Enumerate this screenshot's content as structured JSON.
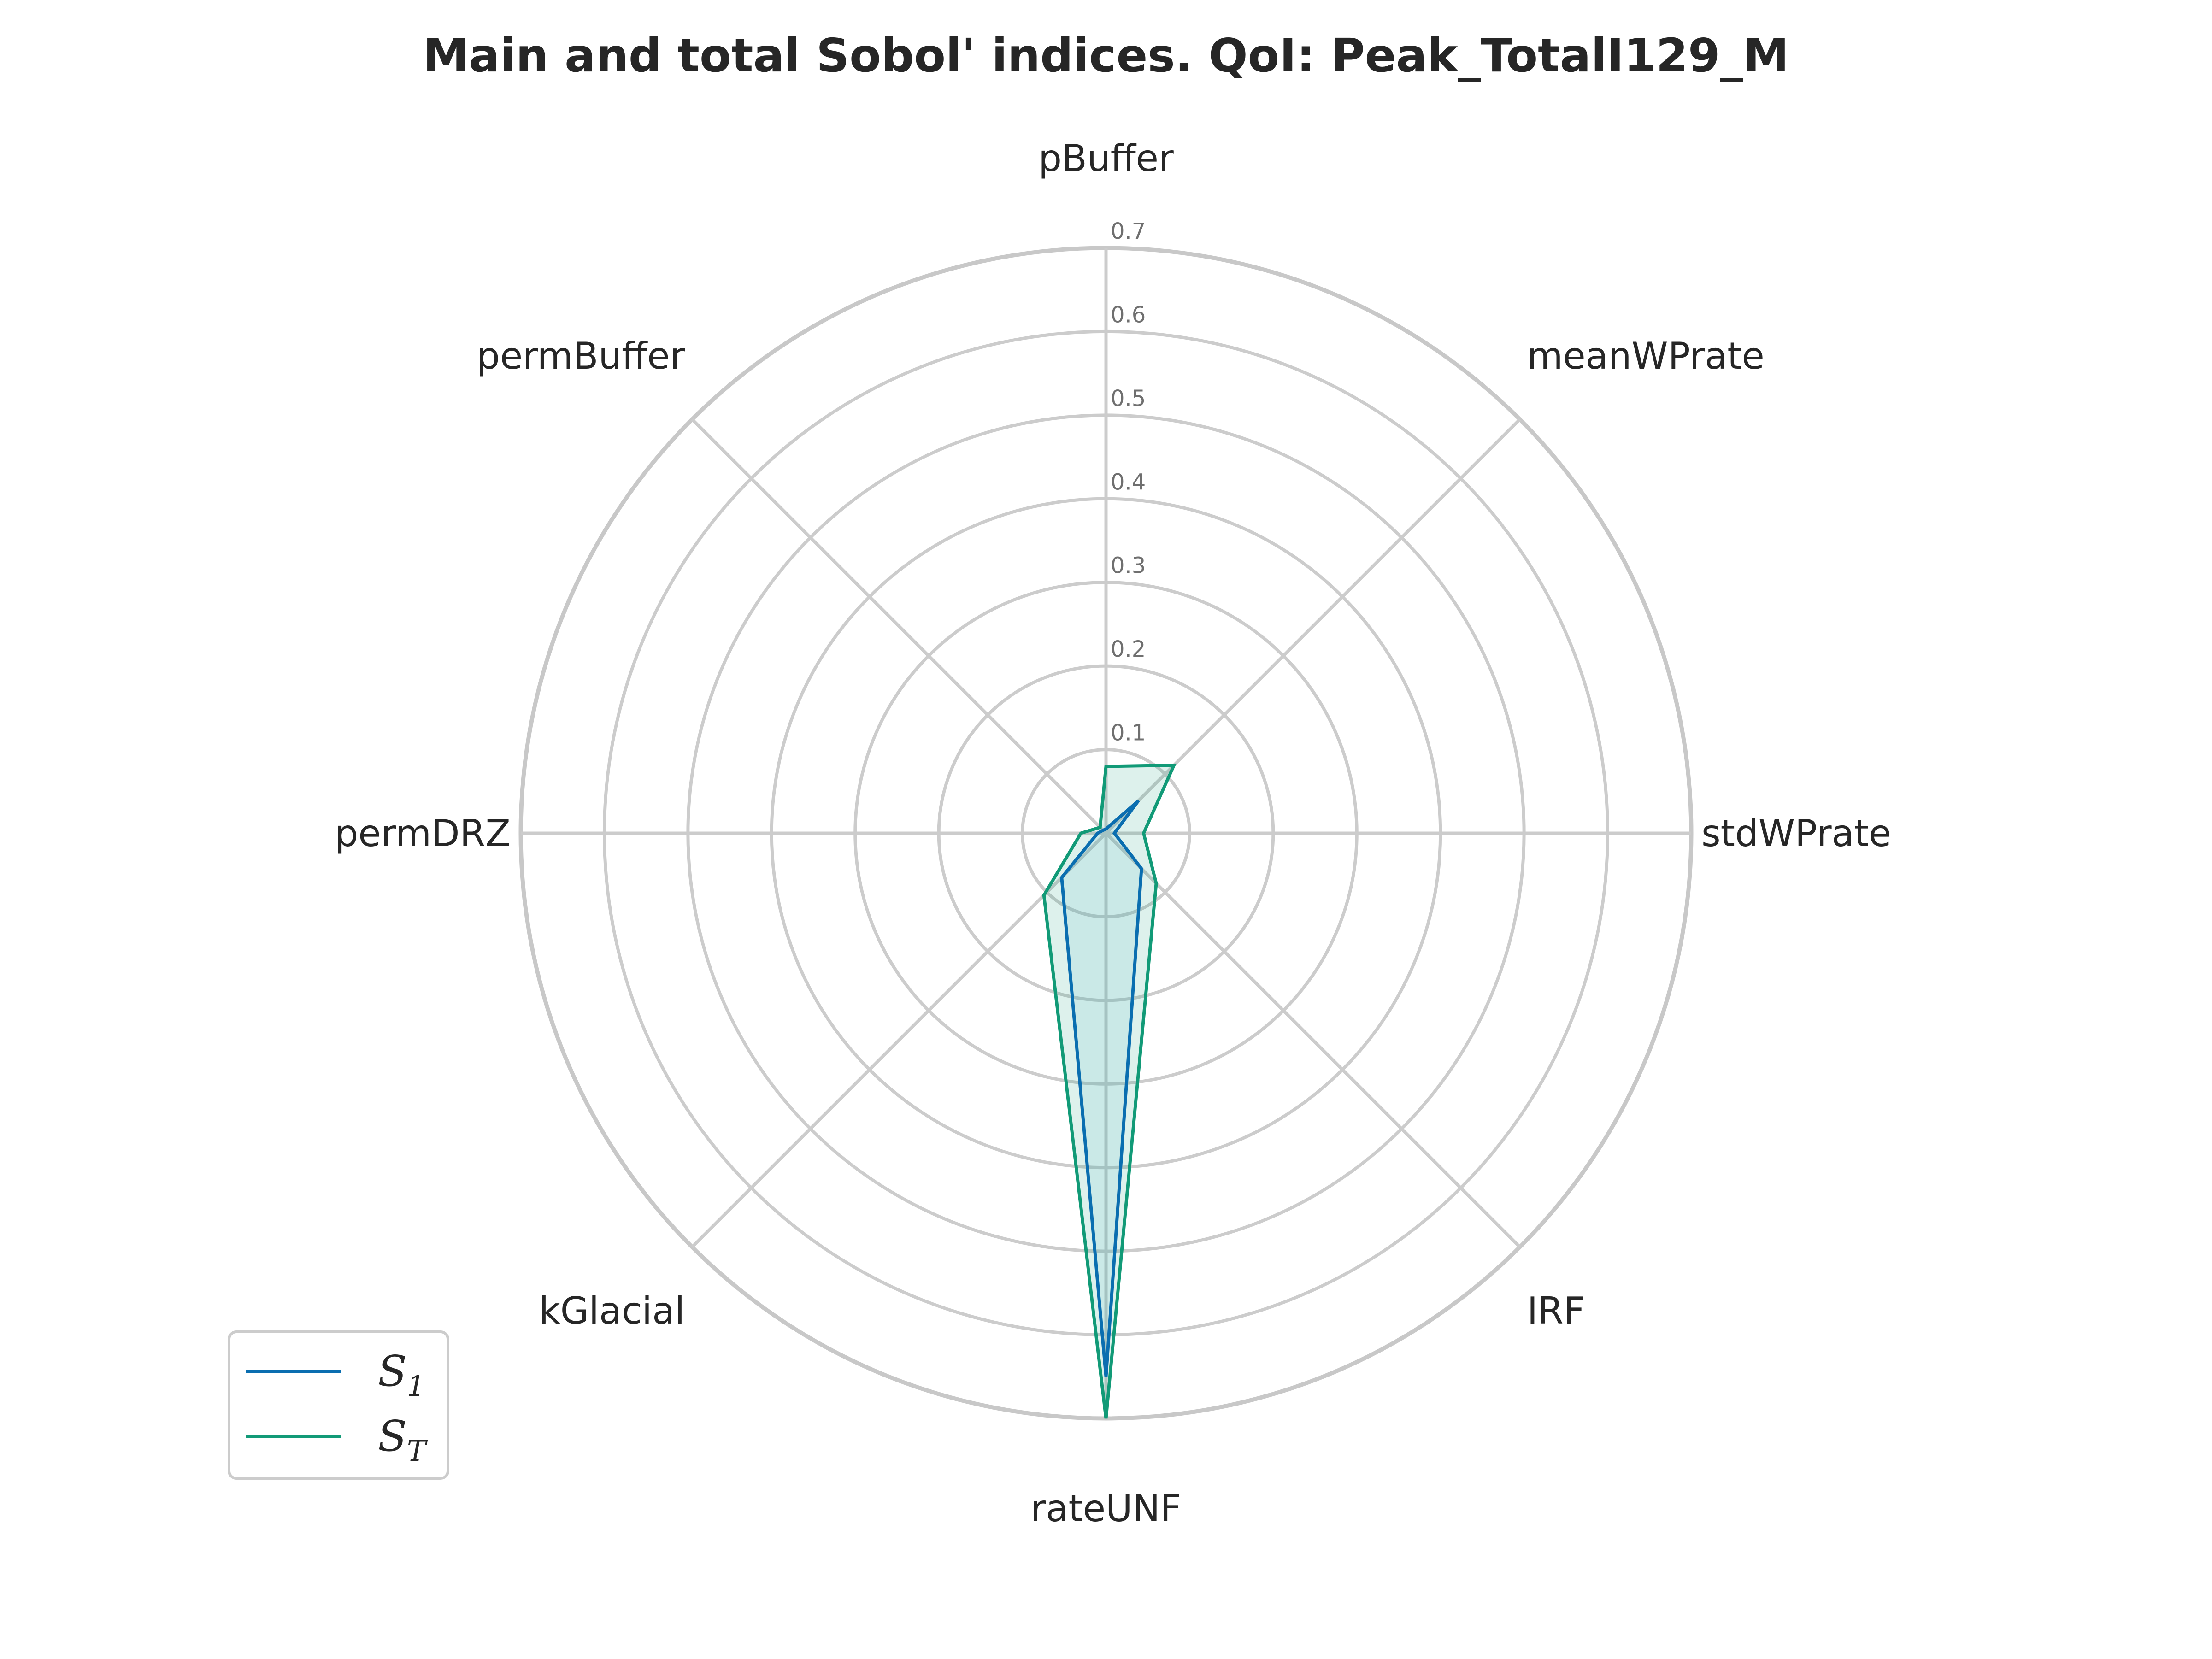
{
  "chart_data": {
    "type": "radar",
    "title": "Main and total Sobol' indices. QoI: Peak_TotalI129_M",
    "categories": [
      "pBuffer",
      "meanWPrate",
      "stdWPrate",
      "IRF",
      "rateUNF",
      "kGlacial",
      "permDRZ",
      "permBuffer"
    ],
    "r_ticks": [
      "0.1",
      "0.2",
      "0.3",
      "0.4",
      "0.5",
      "0.6",
      "0.7"
    ],
    "r_tick_values": [
      0.1,
      0.2,
      0.3,
      0.4,
      0.5,
      0.6,
      0.7
    ],
    "rlim": [
      0,
      0.7
    ],
    "grid": true,
    "legend_position": "lower-left",
    "series": [
      {
        "name": "S1",
        "label_main": "S",
        "label_sub": "1",
        "values": [
          0.005,
          0.055,
          0.01,
          0.06,
          0.65,
          0.075,
          0.01,
          0.005
        ],
        "color": "#0a6eb0"
      },
      {
        "name": "ST",
        "label_main": "S",
        "label_sub": "T",
        "values": [
          0.08,
          0.115,
          0.045,
          0.085,
          0.7,
          0.105,
          0.03,
          0.01
        ],
        "color": "#119a77"
      }
    ],
    "colors": {
      "grid": "#cccccc",
      "outer_ring": "#c8c8c8",
      "st_fill": "#119a77",
      "s1_fill": "#5ab7d0"
    }
  }
}
